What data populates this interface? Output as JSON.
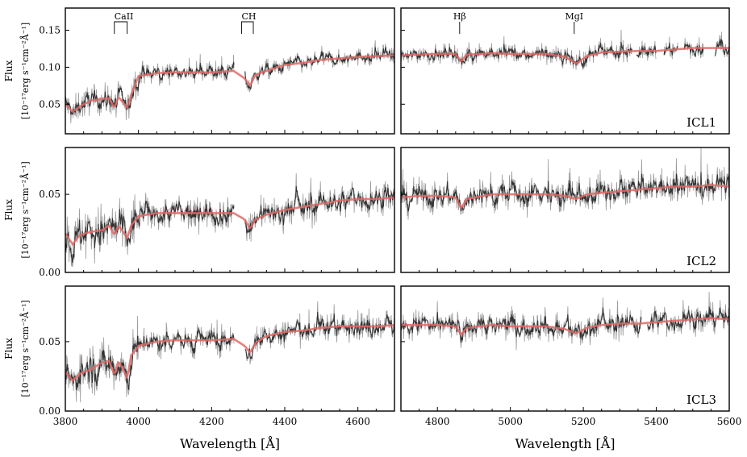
{
  "chart_data": {
    "type": "line",
    "colors": {
      "data": "#333333",
      "noise": "#9a9a9a",
      "model": "#e06a66"
    },
    "xlabel": "Wavelength [Å]",
    "ylabel_line1": "Flux",
    "ylabel_line2": "[10⁻¹⁷erg s⁻¹cm⁻²Å⁻¹]",
    "x_ranges": [
      [
        3800,
        4700
      ],
      [
        4700,
        5600
      ]
    ],
    "x_ticks": [
      [
        3800,
        4000,
        4200,
        4400,
        4600
      ],
      [
        4800,
        5000,
        5200,
        5400,
        5600
      ]
    ],
    "x_tick_labels": [
      [
        "3800",
        "4000",
        "4200",
        "4400",
        "4600"
      ],
      [
        "4800",
        "5000",
        "5200",
        "5400",
        "5600"
      ]
    ],
    "annotations": [
      {
        "label": "CaII",
        "panel": 0,
        "x": [
          3934,
          3969
        ]
      },
      {
        "label": "CH",
        "panel": 0,
        "x": [
          4282,
          4314
        ]
      },
      {
        "label": "Hβ",
        "panel": 1,
        "x": [
          4861
        ]
      },
      {
        "label": "MgI",
        "panel": 1,
        "x": [
          5175
        ]
      }
    ],
    "rows": [
      {
        "name": "ICL1",
        "ylim": [
          0.01,
          0.18
        ],
        "y_ticks": [
          0.05,
          0.1,
          0.15
        ],
        "y_tick_labels": [
          "0.05",
          "0.10",
          "0.15"
        ],
        "noise": 0.012,
        "model": [
          [
            3800,
            0.05
          ],
          [
            3820,
            0.04
          ],
          [
            3840,
            0.047
          ],
          [
            3870,
            0.055
          ],
          [
            3900,
            0.057
          ],
          [
            3920,
            0.058
          ],
          [
            3934,
            0.045
          ],
          [
            3945,
            0.06
          ],
          [
            3958,
            0.052
          ],
          [
            3969,
            0.045
          ],
          [
            3980,
            0.063
          ],
          [
            4000,
            0.088
          ],
          [
            4050,
            0.092
          ],
          [
            4100,
            0.093
          ],
          [
            4150,
            0.093
          ],
          [
            4200,
            0.093
          ],
          [
            4260,
            0.095
          ],
          [
            4290,
            0.085
          ],
          [
            4305,
            0.075
          ],
          [
            4320,
            0.09
          ],
          [
            4350,
            0.095
          ],
          [
            4400,
            0.103
          ],
          [
            4450,
            0.106
          ],
          [
            4500,
            0.11
          ],
          [
            4550,
            0.112
          ],
          [
            4600,
            0.114
          ],
          [
            4650,
            0.115
          ],
          [
            4700,
            0.116
          ],
          [
            4750,
            0.117
          ],
          [
            4800,
            0.118
          ],
          [
            4850,
            0.118
          ],
          [
            4865,
            0.108
          ],
          [
            4880,
            0.117
          ],
          [
            4950,
            0.119
          ],
          [
            5000,
            0.118
          ],
          [
            5100,
            0.118
          ],
          [
            5150,
            0.114
          ],
          [
            5180,
            0.105
          ],
          [
            5210,
            0.115
          ],
          [
            5250,
            0.12
          ],
          [
            5300,
            0.121
          ],
          [
            5350,
            0.122
          ],
          [
            5400,
            0.122
          ],
          [
            5450,
            0.124
          ],
          [
            5500,
            0.126
          ],
          [
            5550,
            0.126
          ],
          [
            5600,
            0.126
          ]
        ],
        "gaps": [
          [
            4262,
            4290
          ],
          [
            5335,
            5345
          ],
          [
            5400,
            5420
          ],
          [
            5460,
            5475
          ],
          [
            5530,
            5560
          ]
        ]
      },
      {
        "name": "ICL2",
        "ylim": [
          0.0,
          0.08
        ],
        "y_ticks": [
          0.0,
          0.05
        ],
        "y_tick_labels": [
          "0.00",
          "0.05"
        ],
        "noise": 0.01,
        "model": [
          [
            3800,
            0.025
          ],
          [
            3820,
            0.018
          ],
          [
            3840,
            0.024
          ],
          [
            3870,
            0.026
          ],
          [
            3900,
            0.027
          ],
          [
            3920,
            0.03
          ],
          [
            3934,
            0.024
          ],
          [
            3945,
            0.03
          ],
          [
            3958,
            0.026
          ],
          [
            3969,
            0.022
          ],
          [
            3980,
            0.03
          ],
          [
            4000,
            0.036
          ],
          [
            4050,
            0.038
          ],
          [
            4100,
            0.038
          ],
          [
            4150,
            0.038
          ],
          [
            4200,
            0.038
          ],
          [
            4260,
            0.038
          ],
          [
            4290,
            0.034
          ],
          [
            4305,
            0.028
          ],
          [
            4320,
            0.034
          ],
          [
            4350,
            0.037
          ],
          [
            4400,
            0.04
          ],
          [
            4450,
            0.042
          ],
          [
            4500,
            0.044
          ],
          [
            4550,
            0.046
          ],
          [
            4600,
            0.047
          ],
          [
            4650,
            0.047
          ],
          [
            4700,
            0.048
          ],
          [
            4750,
            0.049
          ],
          [
            4800,
            0.049
          ],
          [
            4850,
            0.048
          ],
          [
            4865,
            0.041
          ],
          [
            4880,
            0.047
          ],
          [
            4950,
            0.05
          ],
          [
            5000,
            0.05
          ],
          [
            5100,
            0.05
          ],
          [
            5150,
            0.049
          ],
          [
            5180,
            0.047
          ],
          [
            5210,
            0.05
          ],
          [
            5250,
            0.051
          ],
          [
            5300,
            0.052
          ],
          [
            5350,
            0.053
          ],
          [
            5400,
            0.054
          ],
          [
            5450,
            0.055
          ],
          [
            5500,
            0.055
          ],
          [
            5550,
            0.056
          ],
          [
            5600,
            0.055
          ]
        ],
        "gaps": [
          [
            4262,
            4290
          ]
        ]
      },
      {
        "name": "ICL3",
        "ylim": [
          0.0,
          0.09
        ],
        "y_ticks": [
          0.0,
          0.05
        ],
        "y_tick_labels": [
          "0.00",
          "0.05"
        ],
        "noise": 0.01,
        "model": [
          [
            3800,
            0.028
          ],
          [
            3820,
            0.022
          ],
          [
            3840,
            0.027
          ],
          [
            3870,
            0.03
          ],
          [
            3900,
            0.035
          ],
          [
            3920,
            0.036
          ],
          [
            3934,
            0.026
          ],
          [
            3945,
            0.036
          ],
          [
            3958,
            0.03
          ],
          [
            3969,
            0.024
          ],
          [
            3980,
            0.04
          ],
          [
            4000,
            0.047
          ],
          [
            4050,
            0.05
          ],
          [
            4100,
            0.051
          ],
          [
            4150,
            0.051
          ],
          [
            4200,
            0.051
          ],
          [
            4260,
            0.052
          ],
          [
            4290,
            0.047
          ],
          [
            4305,
            0.042
          ],
          [
            4320,
            0.049
          ],
          [
            4350,
            0.054
          ],
          [
            4400,
            0.057
          ],
          [
            4450,
            0.058
          ],
          [
            4500,
            0.06
          ],
          [
            4550,
            0.061
          ],
          [
            4600,
            0.061
          ],
          [
            4650,
            0.061
          ],
          [
            4700,
            0.062
          ],
          [
            4750,
            0.062
          ],
          [
            4800,
            0.062
          ],
          [
            4850,
            0.061
          ],
          [
            4865,
            0.055
          ],
          [
            4880,
            0.06
          ],
          [
            4950,
            0.062
          ],
          [
            5000,
            0.061
          ],
          [
            5100,
            0.061
          ],
          [
            5150,
            0.059
          ],
          [
            5180,
            0.056
          ],
          [
            5210,
            0.06
          ],
          [
            5250,
            0.062
          ],
          [
            5300,
            0.063
          ],
          [
            5350,
            0.063
          ],
          [
            5400,
            0.064
          ],
          [
            5450,
            0.065
          ],
          [
            5500,
            0.066
          ],
          [
            5550,
            0.067
          ],
          [
            5600,
            0.066
          ]
        ],
        "gaps": [
          [
            4262,
            4290
          ],
          [
            5360,
            5375
          ]
        ]
      }
    ]
  }
}
